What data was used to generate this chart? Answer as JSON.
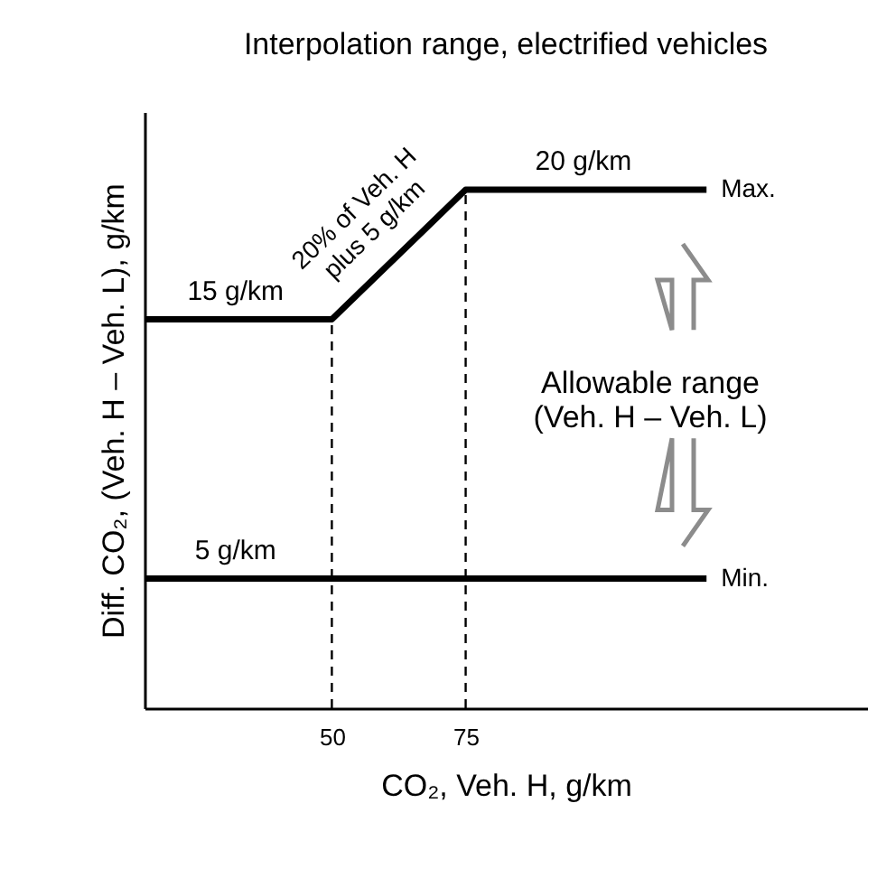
{
  "chart_data": {
    "type": "line",
    "title": "Interpolation range, electrified vehicles",
    "xlabel": "CO₂, Veh. H, g/km",
    "ylabel": "Diff. CO₂, (Veh. H – Veh. L), g/km",
    "xlim": [
      15,
      150
    ],
    "xticks": [
      50,
      75
    ],
    "ylim": [
      0,
      23
    ],
    "tick_labels": "x",
    "legend": false,
    "grid": false,
    "marker": "none",
    "line_style": "solid",
    "series": [
      {
        "name": "Max.",
        "color": "#000000",
        "x": [
          15,
          32,
          50,
          75,
          97,
          120
        ],
        "values": [
          15,
          15,
          15,
          20,
          20,
          20
        ],
        "value_labels": [
          null,
          "15 g/km",
          null,
          null,
          "20 g/km",
          null
        ]
      },
      {
        "name": "Min.",
        "color": "#000000",
        "x": [
          15,
          32,
          120
        ],
        "values": [
          5,
          5,
          5
        ],
        "value_labels": [
          null,
          "5 g/km",
          null
        ]
      }
    ],
    "ref_lines": [
      {
        "axis": "x",
        "value": 50,
        "line_style": "dashed"
      },
      {
        "axis": "x",
        "value": 75,
        "line_style": "dashed"
      }
    ],
    "annotations": [
      {
        "text": "20% of Veh. H\nplus 5 g/km",
        "x": 62.5,
        "y": 17.5
      },
      "Allowable range\n(Veh. H – Veh. L)"
    ]
  }
}
